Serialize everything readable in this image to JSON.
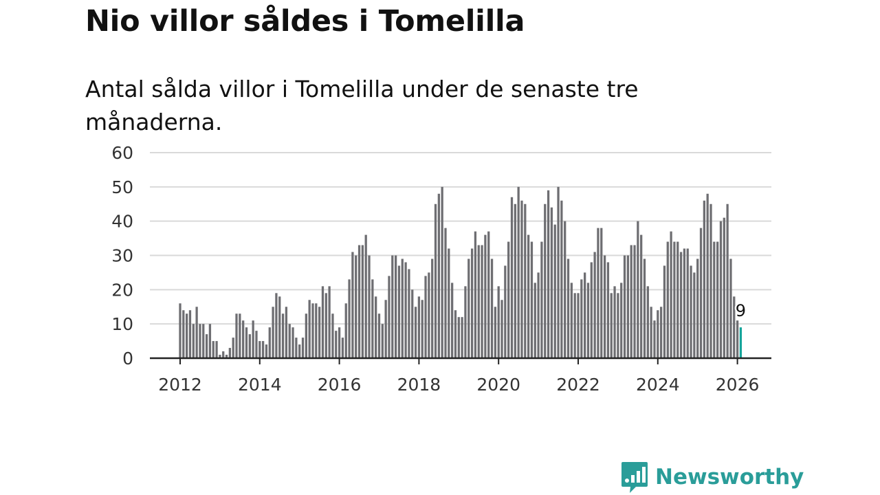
{
  "title": "Nio villor såldes i Tomelilla",
  "subtitle": "Antal sålda villor i Tomelilla under de senaste tre månaderna.",
  "brand": {
    "name": "Newsworthy",
    "color": "#2a9d99"
  },
  "colors": {
    "bar": "#6e6e72",
    "highlight": "#14a49a",
    "grid": "#d9d9d9",
    "axis": "#222222"
  },
  "chart_data": {
    "type": "bar",
    "title": "Nio villor såldes i Tomelilla",
    "xlabel": "",
    "ylabel": "",
    "ylim": [
      0,
      60
    ],
    "yticks": [
      0,
      10,
      20,
      30,
      40,
      50,
      60
    ],
    "xticks": [
      "2012",
      "2014",
      "2016",
      "2018",
      "2020",
      "2022",
      "2024",
      "2026"
    ],
    "x_start": "2012-01",
    "x_range": [
      2010.6,
      2026.8
    ],
    "values": [
      16,
      14,
      13,
      14,
      10,
      15,
      10,
      10,
      7,
      10,
      5,
      5,
      1,
      2,
      1,
      3,
      6,
      13,
      13,
      11,
      9,
      7,
      11,
      8,
      5,
      5,
      4,
      9,
      15,
      19,
      18,
      13,
      15,
      10,
      9,
      6,
      4,
      6,
      13,
      17,
      16,
      16,
      15,
      21,
      19,
      21,
      13,
      8,
      9,
      6,
      16,
      23,
      31,
      30,
      33,
      33,
      36,
      30,
      23,
      18,
      13,
      10,
      17,
      24,
      30,
      30,
      27,
      29,
      28,
      26,
      20,
      15,
      18,
      17,
      24,
      25,
      29,
      45,
      48,
      50,
      38,
      32,
      22,
      14,
      12,
      12,
      21,
      29,
      32,
      37,
      33,
      33,
      36,
      37,
      29,
      15,
      21,
      17,
      27,
      34,
      47,
      45,
      50,
      46,
      45,
      36,
      34,
      22,
      25,
      34,
      45,
      49,
      44,
      39,
      50,
      46,
      40,
      29,
      22,
      19,
      19,
      23,
      25,
      22,
      28,
      31,
      38,
      38,
      30,
      28,
      19,
      21,
      19,
      22,
      30,
      30,
      33,
      33,
      40,
      36,
      29,
      21,
      15,
      11,
      14,
      15,
      27,
      34,
      37,
      34,
      34,
      31,
      32,
      32,
      27,
      25,
      29,
      38,
      46,
      48,
      45,
      34,
      34,
      40,
      41,
      45,
      29,
      18,
      11,
      9
    ],
    "highlight_last": true,
    "annotation": {
      "text": "9",
      "value": 9
    }
  }
}
